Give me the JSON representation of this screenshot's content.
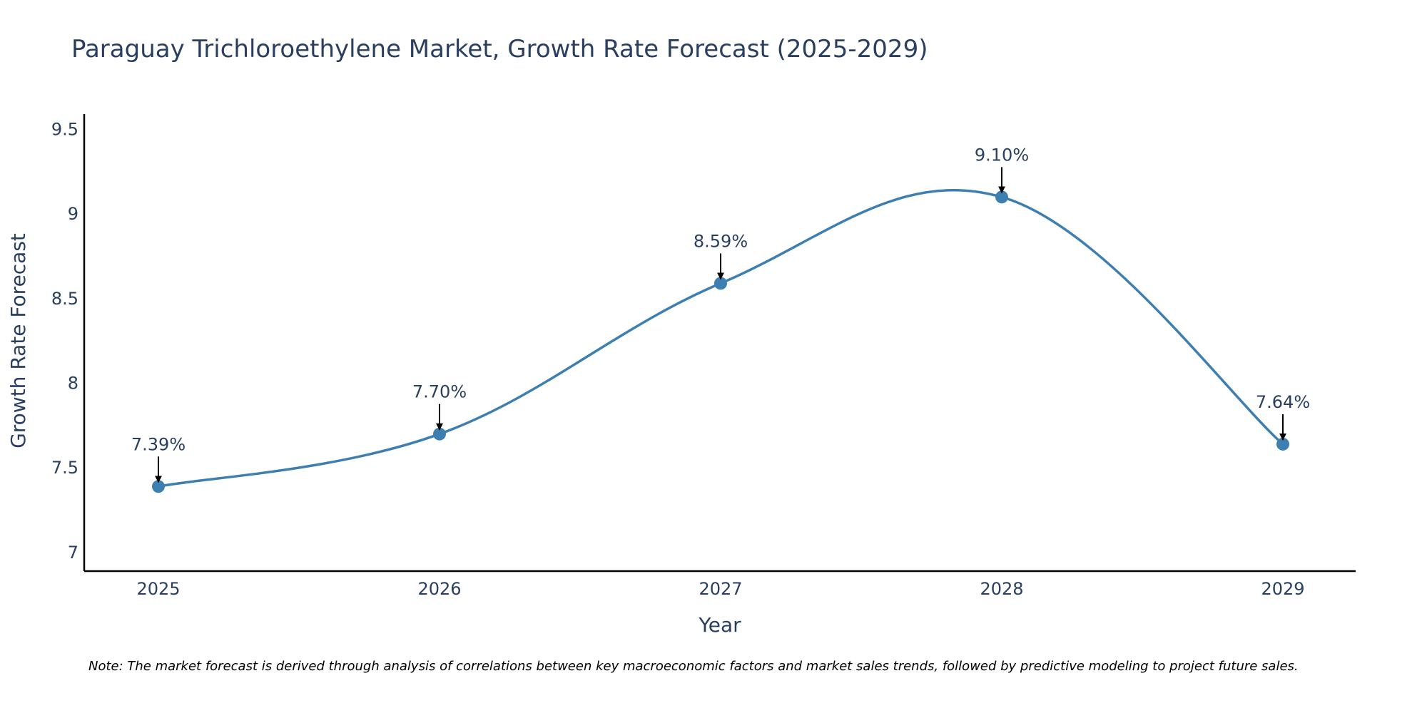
{
  "chart_data": {
    "type": "line",
    "title": "Paraguay Trichloroethylene Market, Growth Rate Forecast (2025-2029)",
    "xlabel": "Year",
    "ylabel": "Growth Rate Forecast",
    "categories": [
      "2025",
      "2026",
      "2027",
      "2028",
      "2029"
    ],
    "values": [
      7.39,
      7.7,
      8.59,
      9.1,
      7.64
    ],
    "data_labels": [
      "7.39%",
      "7.70%",
      "8.59%",
      "9.10%",
      "7.64%"
    ],
    "ylim": [
      6.89,
      9.59
    ],
    "yticks": [
      7,
      7.5,
      8,
      8.5,
      9,
      9.5
    ],
    "ytick_labels": [
      "7",
      "7.5",
      "8",
      "8.5",
      "9",
      "9.5"
    ],
    "grid": false,
    "line_shape": "spline",
    "series_color": "#3d7fb0",
    "note": "Note: The market forecast is derived through analysis of correlations between key macroeconomic factors and market sales trends, followed by predictive modeling to project future sales."
  }
}
